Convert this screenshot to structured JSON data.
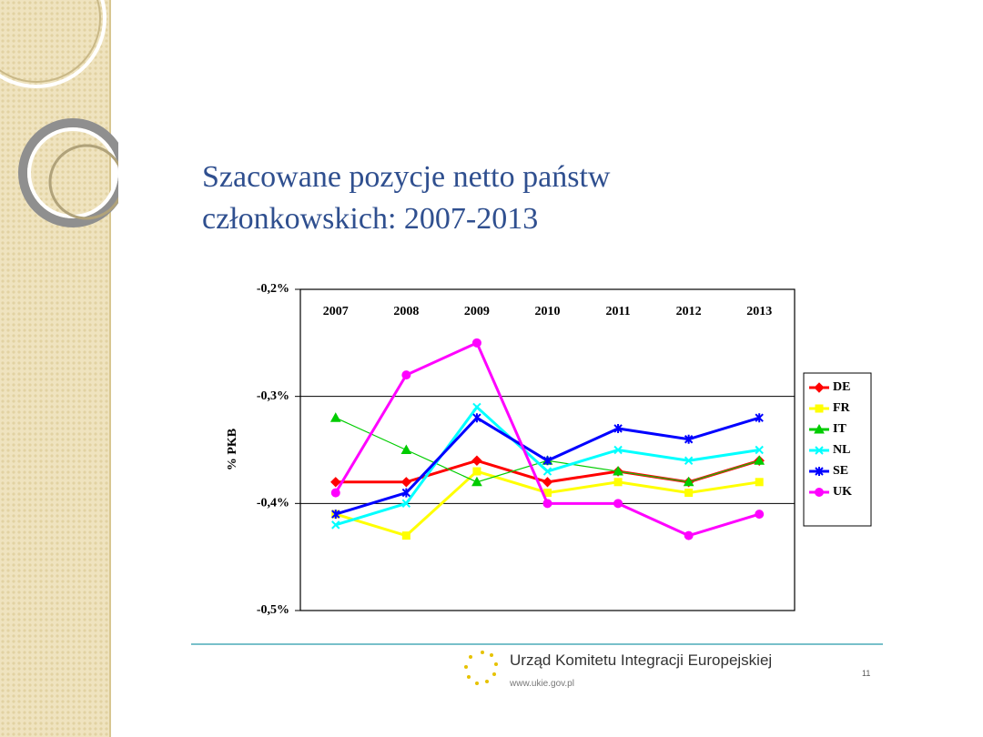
{
  "chart_data": {
    "type": "line",
    "title": "Szacowane pozycje netto państw członkowskich: 2007-2013",
    "y_label": "% PKB",
    "categories": [
      "2007",
      "2008",
      "2009",
      "2010",
      "2011",
      "2012",
      "2013"
    ],
    "ylim": [
      -0.5,
      -0.2
    ],
    "yticks": [
      {
        "value": -0.5,
        "label": "-0,5%"
      },
      {
        "value": -0.4,
        "label": "-0,4%"
      },
      {
        "value": -0.3,
        "label": "-0,3%"
      },
      {
        "value": -0.2,
        "label": "-0,2%"
      }
    ],
    "grid": true,
    "legend": "right",
    "series": [
      {
        "name": "DE",
        "color": "#ff0000",
        "marker": "diamond",
        "values": [
          -0.38,
          -0.38,
          -0.36,
          -0.38,
          -0.37,
          -0.38,
          -0.36
        ]
      },
      {
        "name": "FR",
        "color": "#ffff00",
        "marker": "square",
        "values": [
          -0.41,
          -0.43,
          -0.37,
          -0.39,
          -0.38,
          -0.39,
          -0.38
        ]
      },
      {
        "name": "IT",
        "color": "#00cc00",
        "marker": "triangle",
        "values": [
          -0.32,
          -0.35,
          -0.38,
          -0.36,
          -0.37,
          -0.38,
          -0.36
        ]
      },
      {
        "name": "NL",
        "color": "#00ffff",
        "marker": "cross",
        "values": [
          -0.42,
          -0.4,
          -0.31,
          -0.37,
          -0.35,
          -0.36,
          -0.35
        ]
      },
      {
        "name": "SE",
        "color": "#0000ff",
        "marker": "star",
        "values": [
          -0.41,
          -0.39,
          -0.32,
          -0.36,
          -0.33,
          -0.34,
          -0.32
        ]
      },
      {
        "name": "UK",
        "color": "#ff00ff",
        "marker": "circle",
        "values": [
          -0.39,
          -0.28,
          -0.25,
          -0.4,
          -0.4,
          -0.43,
          -0.41
        ]
      }
    ]
  },
  "footer": {
    "organization": "Urząd Komitetu Integracji Europejskiej",
    "url": "www.ukie.gov.pl",
    "page": "11"
  }
}
